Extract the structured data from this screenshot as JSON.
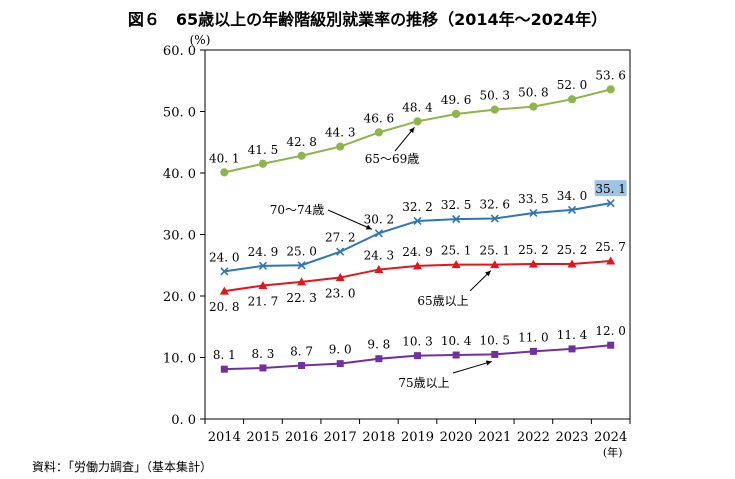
{
  "title": "図６　65歳以上の年齢階級別就業率の推移（2014年～2024年）",
  "source": "資料：「労働力調査」（基本集計）",
  "chart_data": {
    "type": "line",
    "title": "図６　65歳以上の年齢階級別就業率の推移（2014年～2024年）",
    "y_unit": "(%)",
    "x_unit": "(年)",
    "ylim": [
      0,
      60
    ],
    "y_ticks": [
      "0. 0",
      "10. 0",
      "20. 0",
      "30. 0",
      "40. 0",
      "50. 0",
      "60. 0"
    ],
    "grid": false,
    "categories": [
      "2014",
      "2015",
      "2016",
      "2017",
      "2018",
      "2019",
      "2020",
      "2021",
      "2022",
      "2023",
      "2024"
    ],
    "series": [
      {
        "name": "65～69歳",
        "color": "#8db54a",
        "marker": "circle",
        "values": [
          40.1,
          41.5,
          42.8,
          44.3,
          46.6,
          48.4,
          49.6,
          50.3,
          50.8,
          52.0,
          53.6
        ],
        "value_labels": [
          "40. 1",
          "41. 5",
          "42. 8",
          "44. 3",
          "46. 6",
          "48. 4",
          "49. 6",
          "50. 3",
          "50. 8",
          "52. 0",
          "53. 6"
        ]
      },
      {
        "name": "70～74歳",
        "color": "#2e75b6",
        "marker": "x",
        "values": [
          24.0,
          24.9,
          25.0,
          27.2,
          30.2,
          32.2,
          32.5,
          32.6,
          33.5,
          34.0,
          35.1
        ],
        "value_labels": [
          "24. 0",
          "24. 9",
          "25. 0",
          "27. 2",
          "30. 2",
          "32. 2",
          "32. 5",
          "32. 6",
          "33. 5",
          "34. 0",
          "35. 1"
        ]
      },
      {
        "name": "65歳以上",
        "color": "#e3151a",
        "marker": "triangle",
        "values": [
          20.8,
          21.7,
          22.3,
          23.0,
          24.3,
          24.9,
          25.1,
          25.1,
          25.2,
          25.2,
          25.7
        ],
        "value_labels": [
          "20. 8",
          "21. 7",
          "22. 3",
          "23. 0",
          "24. 3",
          "24. 9",
          "25. 1",
          "25. 1",
          "25. 2",
          "25. 2",
          "25. 7"
        ]
      },
      {
        "name": "75歳以上",
        "color": "#7030a0",
        "marker": "square",
        "values": [
          8.1,
          8.3,
          8.7,
          9.0,
          9.8,
          10.3,
          10.4,
          10.5,
          11.0,
          11.4,
          12.0
        ],
        "value_labels": [
          "8. 1",
          "8. 3",
          "8. 7",
          "9. 0",
          "9. 8",
          "10. 3",
          "10. 4",
          "10. 5",
          "11. 0",
          "11. 4",
          "12. 0"
        ]
      }
    ],
    "highlight_color": "#9dc3e6"
  }
}
